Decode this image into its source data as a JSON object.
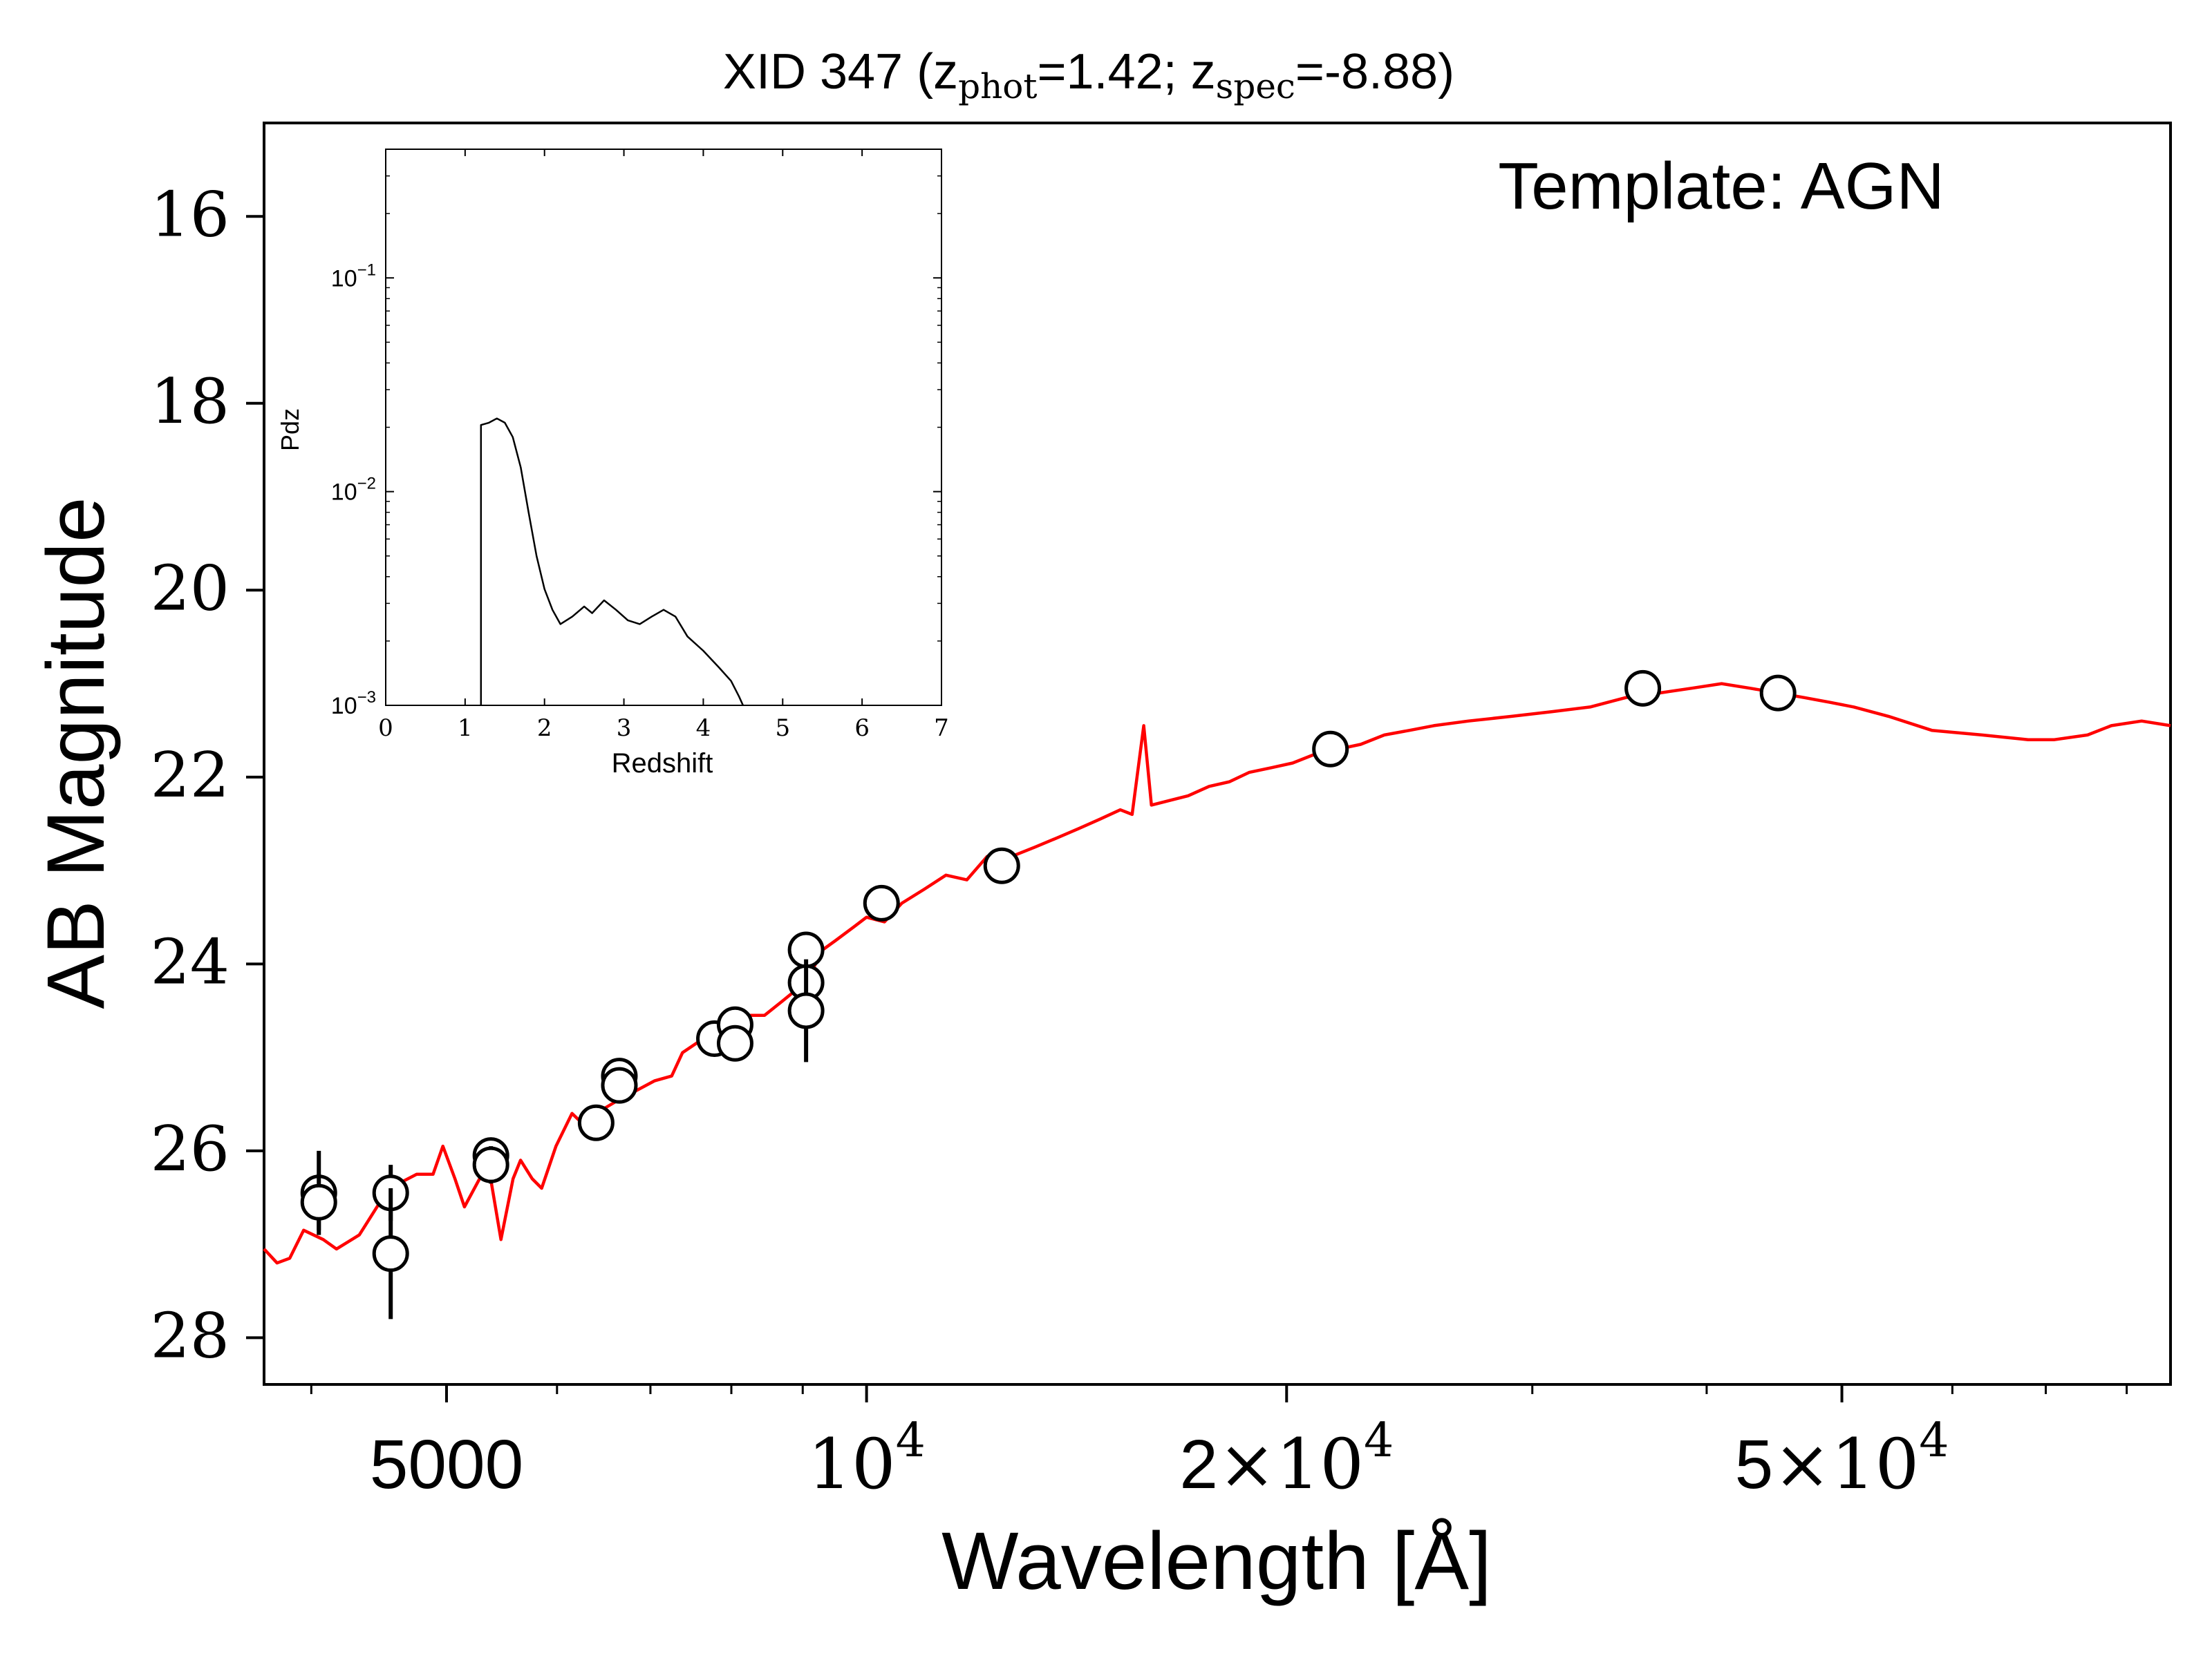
{
  "chart_data": [
    {
      "type": "scatter",
      "title_parts": {
        "prefix": "XID 347 (z",
        "phot_sub": "phot",
        "phot_value": "=1.42; z",
        "spec_sub": "spec",
        "spec_value": "=-8.88)"
      },
      "annotation": "Template: AGN",
      "xlabel": "Wavelength [Å]",
      "ylabel": "AB Magnitude",
      "xscale": "log",
      "xlim": [
        3700,
        86000
      ],
      "ylim": [
        28.5,
        15.0
      ],
      "y_inverted": true,
      "x_ticks": [
        {
          "value": 5000,
          "label": "5000"
        },
        {
          "value": 10000,
          "label": "10",
          "exp": "4"
        },
        {
          "value": 20000,
          "label": "2×10",
          "exp": "4"
        },
        {
          "value": 50000,
          "label": "5×10",
          "exp": "4"
        }
      ],
      "y_ticks": [
        {
          "value": 16,
          "label": "16"
        },
        {
          "value": 18,
          "label": "18"
        },
        {
          "value": 20,
          "label": "20"
        },
        {
          "value": 22,
          "label": "22"
        },
        {
          "value": 24,
          "label": "24"
        },
        {
          "value": 26,
          "label": "26"
        },
        {
          "value": 28,
          "label": "28"
        }
      ],
      "series": [
        {
          "kind": "line",
          "color": "#ff0000",
          "points": [
            [
              3700,
              27.05
            ],
            [
              3780,
              27.2
            ],
            [
              3860,
              27.15
            ],
            [
              3950,
              26.85
            ],
            [
              4080,
              26.95
            ],
            [
              4170,
              27.05
            ],
            [
              4330,
              26.9
            ],
            [
              4480,
              26.55
            ],
            [
              4620,
              26.35
            ],
            [
              4760,
              26.25
            ],
            [
              4890,
              26.25
            ],
            [
              4970,
              25.95
            ],
            [
              5070,
              26.3
            ],
            [
              5150,
              26.6
            ],
            [
              5280,
              26.3
            ],
            [
              5350,
              26.1
            ],
            [
              5470,
              26.95
            ],
            [
              5580,
              26.3
            ],
            [
              5650,
              26.1
            ],
            [
              5760,
              26.3
            ],
            [
              5850,
              26.4
            ],
            [
              5990,
              25.95
            ],
            [
              6150,
              25.6
            ],
            [
              6300,
              25.75
            ],
            [
              6480,
              25.55
            ],
            [
              6650,
              25.45
            ],
            [
              6850,
              25.35
            ],
            [
              7050,
              25.25
            ],
            [
              7250,
              25.2
            ],
            [
              7380,
              24.95
            ],
            [
              7550,
              24.85
            ],
            [
              7700,
              24.75
            ],
            [
              7880,
              24.8
            ],
            [
              8020,
              24.65
            ],
            [
              8220,
              24.55
            ],
            [
              8450,
              24.55
            ],
            [
              8700,
              24.4
            ],
            [
              8950,
              24.25
            ],
            [
              9120,
              24.1
            ],
            [
              9300,
              23.85
            ],
            [
              9500,
              23.75
            ],
            [
              9800,
              23.6
            ],
            [
              10000,
              23.5
            ],
            [
              10300,
              23.55
            ],
            [
              10600,
              23.35
            ],
            [
              11000,
              23.2
            ],
            [
              11400,
              23.05
            ],
            [
              11800,
              23.1
            ],
            [
              12200,
              22.85
            ],
            [
              12700,
              22.85
            ],
            [
              13200,
              22.75
            ],
            [
              13700,
              22.65
            ],
            [
              14200,
              22.55
            ],
            [
              14700,
              22.45
            ],
            [
              15200,
              22.35
            ],
            [
              15500,
              22.4
            ],
            [
              15800,
              21.45
            ],
            [
              16000,
              22.3
            ],
            [
              16500,
              22.25
            ],
            [
              17000,
              22.2
            ],
            [
              17600,
              22.1
            ],
            [
              18200,
              22.05
            ],
            [
              18800,
              21.95
            ],
            [
              19500,
              21.9
            ],
            [
              20200,
              21.85
            ],
            [
              21000,
              21.75
            ],
            [
              21800,
              21.7
            ],
            [
              22600,
              21.65
            ],
            [
              23500,
              21.55
            ],
            [
              24500,
              21.5
            ],
            [
              25500,
              21.45
            ],
            [
              27000,
              21.4
            ],
            [
              29000,
              21.35
            ],
            [
              31000,
              21.3
            ],
            [
              33000,
              21.25
            ],
            [
              35000,
              21.15
            ],
            [
              37000,
              21.1
            ],
            [
              39000,
              21.05
            ],
            [
              41000,
              21.0
            ],
            [
              43000,
              21.05
            ],
            [
              45000,
              21.1
            ],
            [
              47000,
              21.15
            ],
            [
              49000,
              21.2
            ],
            [
              51000,
              21.25
            ],
            [
              54000,
              21.35
            ],
            [
              58000,
              21.5
            ],
            [
              63000,
              21.55
            ],
            [
              68000,
              21.6
            ],
            [
              71000,
              21.6
            ],
            [
              75000,
              21.55
            ],
            [
              78000,
              21.45
            ],
            [
              82000,
              21.4
            ],
            [
              86000,
              21.45
            ]
          ]
        },
        {
          "kind": "errorbar",
          "color": "#000000",
          "points": [
            {
              "x": 4050,
              "y": 26.45,
              "err": 0.45
            },
            {
              "x": 4050,
              "y": 26.55,
              "err": 0.3
            },
            {
              "x": 4560,
              "y": 26.45,
              "err": 0.3
            },
            {
              "x": 4560,
              "y": 27.1,
              "err": 0.7
            },
            {
              "x": 5380,
              "y": 26.05,
              "err": 0.15
            },
            {
              "x": 5380,
              "y": 26.15,
              "err": 0.2
            },
            {
              "x": 6400,
              "y": 25.7,
              "err": 0.1
            },
            {
              "x": 6650,
              "y": 25.2,
              "err": 0.08
            },
            {
              "x": 6650,
              "y": 25.3,
              "err": 0.08
            },
            {
              "x": 7780,
              "y": 24.8,
              "err": 0.08
            },
            {
              "x": 8050,
              "y": 24.65,
              "err": 0.08
            },
            {
              "x": 8050,
              "y": 24.85,
              "err": 0.08
            },
            {
              "x": 9050,
              "y": 23.85,
              "err": 0.1
            },
            {
              "x": 9050,
              "y": 24.2,
              "err": 0.12
            },
            {
              "x": 9050,
              "y": 24.5,
              "err": 0.55
            },
            {
              "x": 10250,
              "y": 23.35,
              "err": 0.05
            },
            {
              "x": 12500,
              "y": 22.95,
              "err": 0.05
            },
            {
              "x": 21500,
              "y": 21.7,
              "err": 0.05
            },
            {
              "x": 36000,
              "y": 21.05,
              "err": 0.05
            },
            {
              "x": 45000,
              "y": 21.1,
              "err": 0.05
            }
          ]
        }
      ]
    },
    {
      "type": "line",
      "role": "inset",
      "xlabel": "Redshift",
      "ylabel": "Pdz",
      "xscale": "linear",
      "yscale": "log",
      "xlim": [
        0,
        7
      ],
      "ylim": [
        0.001,
        0.4
      ],
      "x_ticks": [
        "0",
        "1",
        "2",
        "3",
        "4",
        "5",
        "6",
        "7"
      ],
      "y_ticks": [
        {
          "value": 0.1,
          "base": "10",
          "exp": "−1"
        },
        {
          "value": 0.01,
          "base": "10",
          "exp": "−2"
        },
        {
          "value": 0.001,
          "base": "10",
          "exp": "−3"
        }
      ],
      "series": [
        {
          "color": "#000000",
          "points": [
            [
              1.2,
              0.001
            ],
            [
              1.2,
              0.0205
            ],
            [
              1.3,
              0.021
            ],
            [
              1.4,
              0.022
            ],
            [
              1.5,
              0.021
            ],
            [
              1.6,
              0.018
            ],
            [
              1.7,
              0.013
            ],
            [
              1.8,
              0.008
            ],
            [
              1.9,
              0.005
            ],
            [
              2.0,
              0.0035
            ],
            [
              2.1,
              0.0028
            ],
            [
              2.2,
              0.0024
            ],
            [
              2.35,
              0.0026
            ],
            [
              2.5,
              0.0029
            ],
            [
              2.6,
              0.0027
            ],
            [
              2.75,
              0.0031
            ],
            [
              2.9,
              0.0028
            ],
            [
              3.05,
              0.0025
            ],
            [
              3.2,
              0.0024
            ],
            [
              3.35,
              0.0026
            ],
            [
              3.5,
              0.0028
            ],
            [
              3.65,
              0.0026
            ],
            [
              3.8,
              0.0021
            ],
            [
              4.0,
              0.0018
            ],
            [
              4.2,
              0.0015
            ],
            [
              4.35,
              0.0013
            ],
            [
              4.45,
              0.0011
            ],
            [
              4.5,
              0.001
            ]
          ]
        }
      ]
    }
  ]
}
